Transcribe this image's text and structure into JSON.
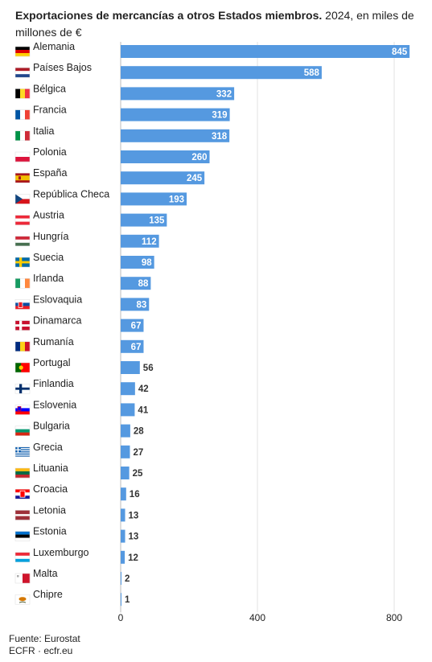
{
  "title": {
    "bold": "Exportaciones de mercancías a otros Estados miembros.",
    "rest": " 2024, en miles de millones de €"
  },
  "footer": {
    "source": "Fuente: Eurostat",
    "credit": "ECFR · ecfr.eu"
  },
  "colors": {
    "bar": "#5599e0",
    "value_inside": "#ffffff",
    "value_outside": "#333333"
  },
  "chart_data": {
    "type": "bar",
    "orientation": "horizontal",
    "title": "Exportaciones de mercancías a otros Estados miembros. 2024, en miles de millones de €",
    "xlim": [
      0,
      850
    ],
    "xticks": [
      0,
      400,
      800
    ],
    "grid": true,
    "categories": [
      "Alemania",
      "Países Bajos",
      "Bélgica",
      "Francia",
      "Italia",
      "Polonia",
      "España",
      "República Checa",
      "Austria",
      "Hungría",
      "Suecia",
      "Irlanda",
      "Eslovaquia",
      "Dinamarca",
      "Rumanía",
      "Portugal",
      "Finlandia",
      "Eslovenia",
      "Bulgaria",
      "Grecia",
      "Lituania",
      "Croacia",
      "Letonia",
      "Estonia",
      "Luxemburgo",
      "Malta",
      "Chipre"
    ],
    "values": [
      845,
      588,
      332,
      319,
      318,
      260,
      245,
      193,
      135,
      112,
      98,
      88,
      83,
      67,
      67,
      56,
      42,
      41,
      28,
      27,
      25,
      16,
      13,
      13,
      12,
      2,
      1
    ],
    "flags": [
      "de",
      "nl",
      "be",
      "fr",
      "it",
      "pl",
      "es",
      "cz",
      "at",
      "hu",
      "se",
      "ie",
      "sk",
      "dk",
      "ro",
      "pt",
      "fi",
      "si",
      "bg",
      "gr",
      "lt",
      "hr",
      "lv",
      "ee",
      "lu",
      "mt",
      "cy"
    ]
  }
}
